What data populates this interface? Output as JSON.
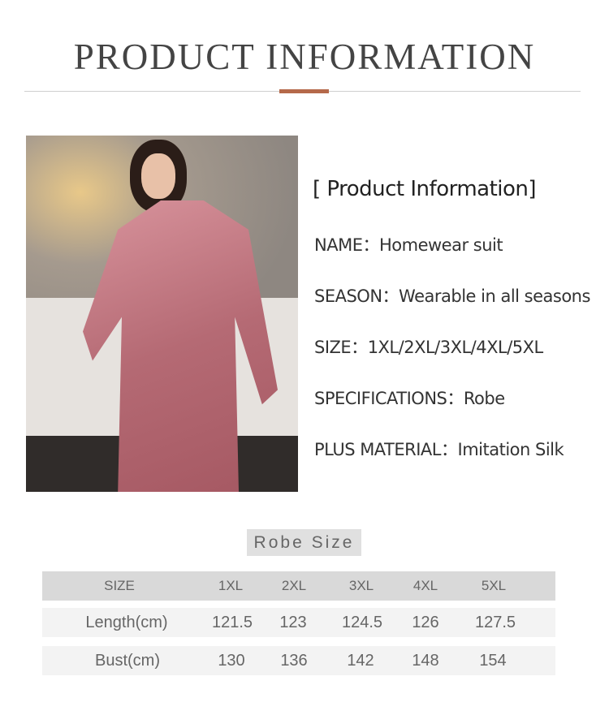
{
  "header": {
    "title": "PRODUCT INFORMATION",
    "accent_color": "#b5694a"
  },
  "photo": {
    "description_icon": "product-photo"
  },
  "info": {
    "heading": "[ Product Information]",
    "items": [
      {
        "label": "NAME：",
        "value": "Homewear suit"
      },
      {
        "label": "SEASON：",
        "value": "Wearable in all seasons"
      },
      {
        "label": "SIZE：",
        "value": "1XL/2XL/3XL/4XL/5XL"
      },
      {
        "label": "SPECIFICATIONS：",
        "value": "Robe"
      },
      {
        "label": "PLUS MATERIAL：",
        "value": "Imitation Silk"
      }
    ]
  },
  "size_table": {
    "title": "Robe Size",
    "header": [
      "SIZE",
      "1XL",
      "2XL",
      "3XL",
      "4XL",
      "5XL"
    ],
    "rows": [
      [
        "Length(cm)",
        "121.5",
        "123",
        "124.5",
        "126",
        "127.5"
      ],
      [
        "Bust(cm)",
        "130",
        "136",
        "142",
        "148",
        "154"
      ]
    ]
  }
}
